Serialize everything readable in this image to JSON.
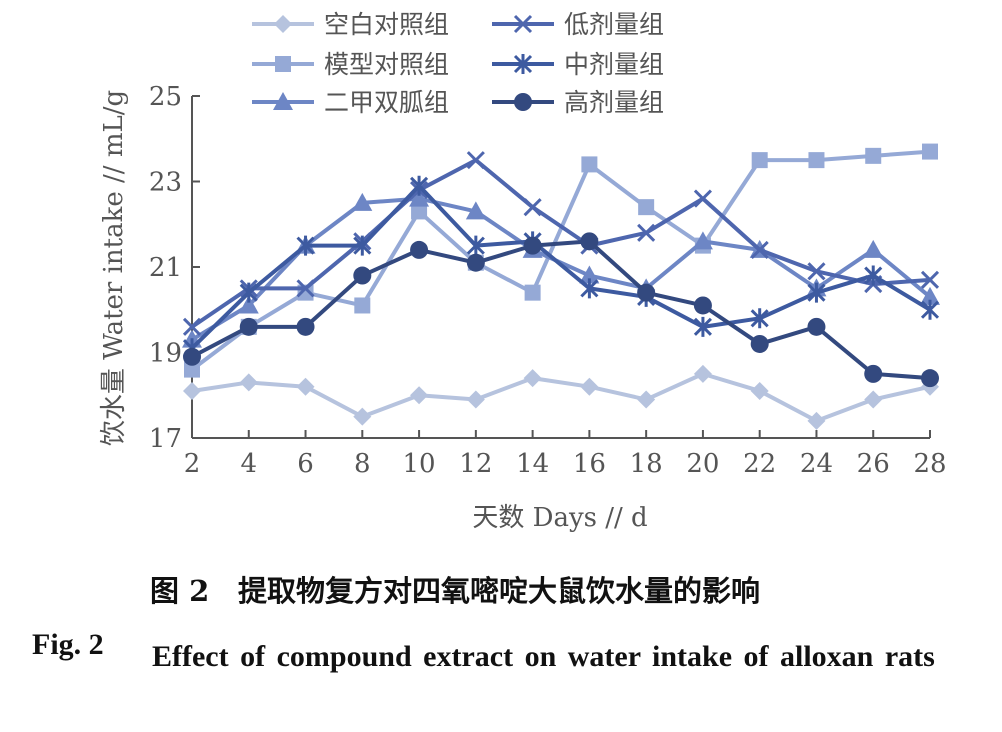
{
  "caption": {
    "zh_label": "图 2",
    "zh_text": "提取物复方对四氧嘧啶大鼠饮水量的影响",
    "en_label": "Fig. 2",
    "en_text": "Effect of compound extract on water intake of alloxan rats"
  },
  "chart_data": {
    "type": "line",
    "xlabel": "天数 Days // d",
    "ylabel": "饮水量 Water intake // mL/g",
    "x": [
      2,
      4,
      6,
      8,
      10,
      12,
      14,
      16,
      18,
      20,
      22,
      24,
      26,
      28
    ],
    "xlim": [
      2,
      28
    ],
    "ylim": [
      17,
      25
    ],
    "yticks": [
      17,
      19,
      21,
      23,
      25
    ],
    "grid": false,
    "legend_position": "top",
    "series": [
      {
        "name": "空白对照组",
        "marker": "diamond",
        "color": "#b6c3de",
        "values": [
          18.1,
          18.3,
          18.2,
          17.5,
          18.0,
          17.9,
          18.4,
          18.2,
          17.9,
          18.5,
          18.1,
          17.4,
          17.9,
          18.2
        ]
      },
      {
        "name": "模型对照组",
        "marker": "square",
        "color": "#95a9d6",
        "values": [
          18.6,
          19.6,
          20.4,
          20.1,
          22.3,
          21.1,
          20.4,
          23.4,
          22.4,
          21.5,
          23.5,
          23.5,
          23.6,
          23.7
        ]
      },
      {
        "name": "二甲双胍组",
        "marker": "triangle",
        "color": "#6d86c5",
        "values": [
          19.3,
          20.1,
          21.5,
          22.5,
          22.6,
          22.3,
          21.4,
          20.8,
          20.5,
          21.6,
          21.4,
          20.5,
          21.4,
          20.3
        ]
      },
      {
        "name": "低剂量组",
        "marker": "x",
        "color": "#4e66ae",
        "values": [
          19.6,
          20.5,
          20.5,
          21.6,
          22.8,
          23.5,
          22.4,
          21.5,
          21.8,
          22.6,
          21.4,
          20.9,
          20.6,
          20.7
        ]
      },
      {
        "name": "中剂量组",
        "marker": "star",
        "color": "#3d5aa0",
        "values": [
          19.1,
          20.4,
          21.5,
          21.5,
          22.9,
          21.5,
          21.6,
          20.5,
          20.3,
          19.6,
          19.8,
          20.4,
          20.8,
          20.0
        ]
      },
      {
        "name": "高剂量组",
        "marker": "circle",
        "color": "#33497f",
        "values": [
          18.9,
          19.6,
          19.6,
          20.8,
          21.4,
          21.1,
          21.5,
          21.6,
          20.4,
          20.1,
          19.2,
          19.6,
          18.5,
          18.4
        ]
      }
    ]
  }
}
